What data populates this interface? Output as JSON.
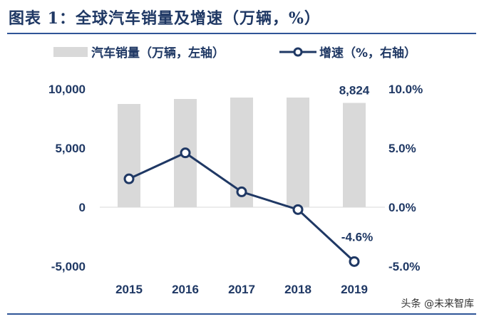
{
  "title": "图表 1：全球汽车销量及增速（万辆，%）",
  "watermark": "头条 @未来智库",
  "chart_data": {
    "type": "bar",
    "categories": [
      "2015",
      "2016",
      "2017",
      "2018",
      "2019"
    ],
    "series": [
      {
        "name": "汽车销量（万辆，左轴）",
        "kind": "bar",
        "axis": "left",
        "color": "#d9d9d9",
        "values": [
          8735,
          9157,
          9277,
          9277,
          8824
        ]
      },
      {
        "name": "增速（%，右轴）",
        "kind": "line",
        "axis": "right",
        "color": "#1f3864",
        "values": [
          2.4,
          4.6,
          1.3,
          -0.2,
          -4.6
        ]
      }
    ],
    "left_axis": {
      "ylim": [
        -5000,
        10000
      ],
      "ticks": [
        "10,000",
        "5,000",
        "0",
        "-5,000"
      ],
      "tick_values": [
        10000,
        5000,
        0,
        -5000
      ]
    },
    "right_axis": {
      "ylim": [
        -5,
        10
      ],
      "ticks": [
        "10.0%",
        "5.0%",
        "0.0%",
        "-5.0%"
      ],
      "tick_values": [
        10,
        5,
        0,
        -5
      ]
    },
    "data_labels": [
      {
        "series": 0,
        "category": "2019",
        "text": "8,824"
      },
      {
        "series": 1,
        "category": "2019",
        "text": "-4.6%"
      }
    ],
    "legend_placement": "top",
    "grid": false
  }
}
